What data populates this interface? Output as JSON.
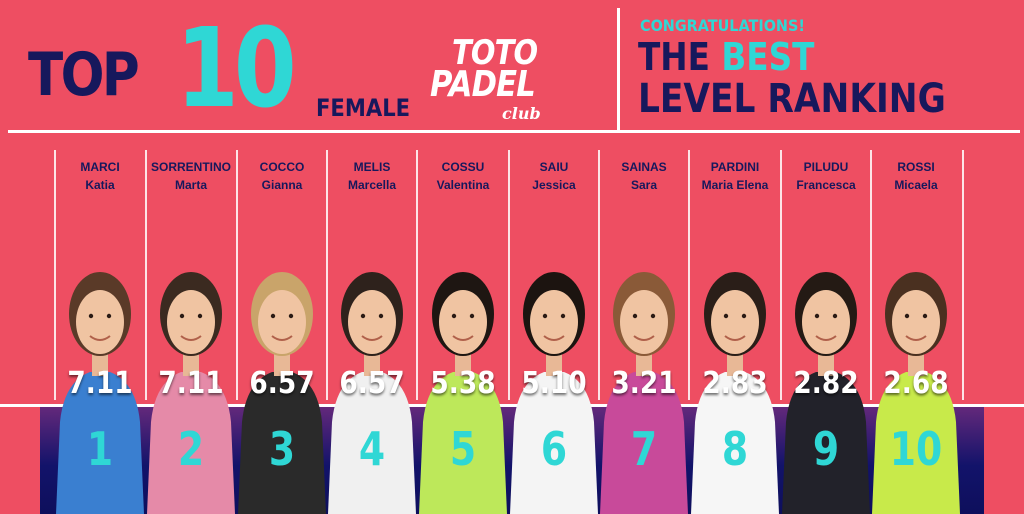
{
  "header": {
    "top_word": "TOP",
    "top_number": "10",
    "category": "FEMALE",
    "logo_line1": "TOTO",
    "logo_line2": "PADEL",
    "logo_line3": "club",
    "congrats": "CONGRATULATIONS!",
    "best_prefix": "THE",
    "best_accent": "BEST",
    "ranking_title": "LEVEL RANKING"
  },
  "colors": {
    "background": "#ee4e62",
    "navy": "#17185c",
    "accent": "#2fd7d5",
    "white": "#ffffff"
  },
  "players": [
    {
      "surname": "MARCI",
      "name": "Katia",
      "score": "7.11",
      "rank": "1",
      "top": "#3a7fd0",
      "hair": "#5a3a28"
    },
    {
      "surname": "SORRENTINO",
      "name": "Marta",
      "score": "7.11",
      "rank": "2",
      "top": "#e58aa8",
      "hair": "#3b2a20"
    },
    {
      "surname": "COCCO",
      "name": "Gianna",
      "score": "6.57",
      "rank": "3",
      "top": "#2a2a2a",
      "hair": "#c9a46a"
    },
    {
      "surname": "MELIS",
      "name": "Marcella",
      "score": "6.57",
      "rank": "4",
      "top": "#f0f0f0",
      "hair": "#2e221c"
    },
    {
      "surname": "COSSU",
      "name": "Valentina",
      "score": "5.38",
      "rank": "5",
      "top": "#bde85a",
      "hair": "#1e1612"
    },
    {
      "surname": "SAIU",
      "name": "Jessica",
      "score": "5.10",
      "rank": "6",
      "top": "#f4f4f4",
      "hair": "#1c1410"
    },
    {
      "surname": "SAINAS",
      "name": "Sara",
      "score": "3.21",
      "rank": "7",
      "top": "#c84a9a",
      "hair": "#8a5a38"
    },
    {
      "surname": "PARDINI",
      "name": "Maria Elena",
      "score": "2.83",
      "rank": "8",
      "top": "#f6f6f6",
      "hair": "#2a1e18"
    },
    {
      "surname": "PILUDU",
      "name": "Francesca",
      "score": "2.82",
      "rank": "9",
      "top": "#22222a",
      "hair": "#241a14"
    },
    {
      "surname": "ROSSI",
      "name": "Micaela",
      "score": "2.68",
      "rank": "10",
      "top": "#c8ea4a",
      "hair": "#4a3020"
    }
  ]
}
